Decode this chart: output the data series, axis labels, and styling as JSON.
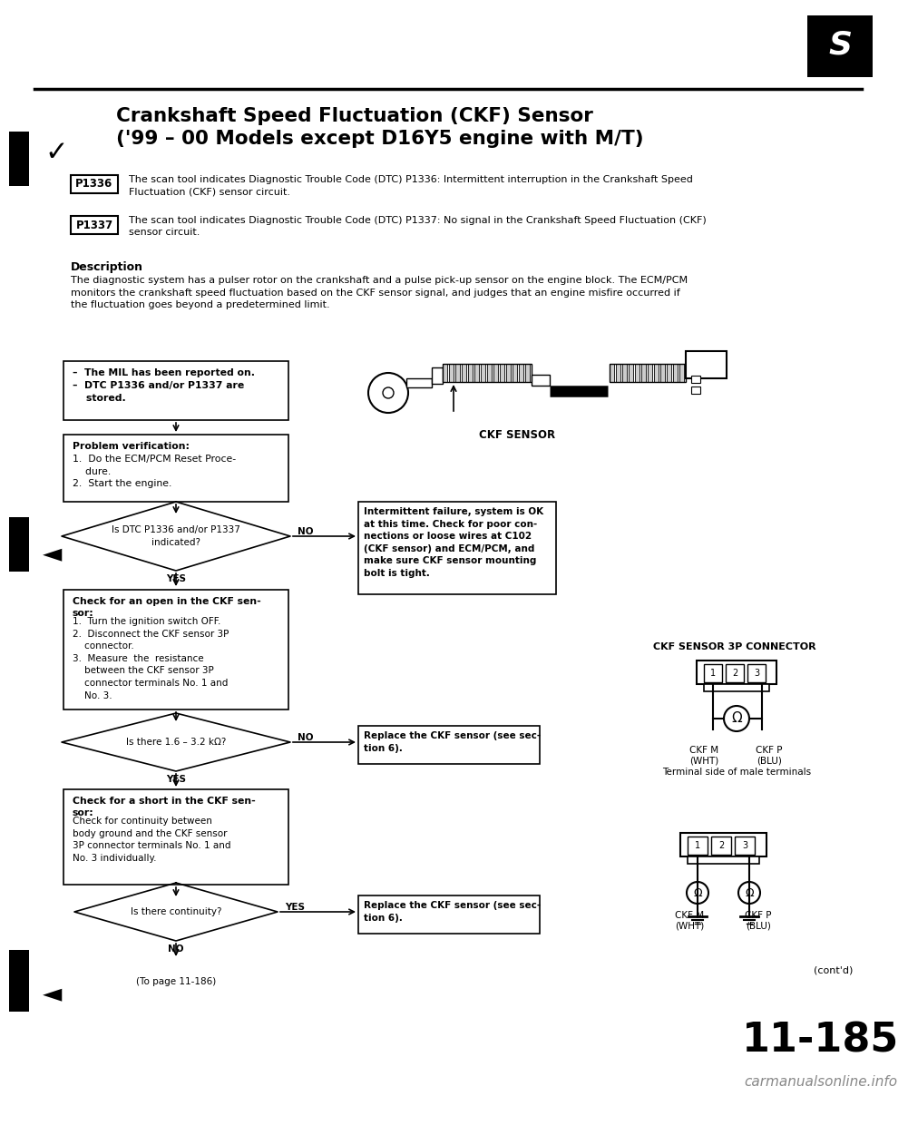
{
  "page_bg": "#ffffff",
  "title_line1": "Crankshaft Speed Fluctuation (CKF) Sensor",
  "title_line2": "('99 – 00 Models except D16Y5 engine with M/T)",
  "p1336_label": "P1336",
  "p1336_text": "The scan tool indicates Diagnostic Trouble Code (DTC) P1336: Intermittent interruption in the Crankshaft Speed\nFluctuation (CKF) sensor circuit.",
  "p1337_label": "P1337",
  "p1337_text": "The scan tool indicates Diagnostic Trouble Code (DTC) P1337: No signal in the Crankshaft Speed Fluctuation (CKF)\nsensor circuit.",
  "desc_title": "Description",
  "desc_text": "The diagnostic system has a pulser rotor on the crankshaft and a pulse pick-up sensor on the engine block. The ECM/PCM\nmonitors the crankshaft speed fluctuation based on the CKF sensor signal, and judges that an engine misfire occurred if\nthe fluctuation goes beyond a predetermined limit.",
  "box1_text": "–  The MIL has been reported on.\n–  DTC P1336 and/or P1337 are\n    stored.",
  "box2_title": "Problem verification:",
  "box2_text": "1.  Do the ECM/PCM Reset Proce-\n    dure.\n2.  Start the engine.",
  "diamond1_text": "Is DTC P1336 and/or P1337\nindicated?",
  "diamond1_no": "NO",
  "diamond1_yes": "YES",
  "intermittent_text": "Intermittent failure, system is OK\nat this time. Check for poor con-\nnections or loose wires at C102\n(CKF sensor) and ECM/PCM, and\nmake sure CKF sensor mounting\nbolt is tight.",
  "box3_title": "Check for an open in the CKF sen-\nsor:",
  "box3_text": "1.  Turn the ignition switch OFF.\n2.  Disconnect the CKF sensor 3P\n    connector.\n3.  Measure  the  resistance\n    between the CKF sensor 3P\n    connector terminals No. 1 and\n    No. 3.",
  "diamond2_text": "Is there 1.6 – 3.2 kΩ?",
  "diamond2_no": "NO",
  "diamond2_yes": "YES",
  "replace1_text": "Replace the CKF sensor (see sec-\ntion 6).",
  "box4_title": "Check for a short in the CKF sen-\nsor:",
  "box4_text": "Check for continuity between\nbody ground and the CKF sensor\n3P connector terminals No. 1 and\nNo. 3 individually.",
  "diamond3_text": "Is there continuity?",
  "diamond3_yes": "YES",
  "diamond3_no": "NO",
  "replace2_text": "Replace the CKF sensor (see sec-\ntion 6).",
  "ckf_sensor_label": "CKF SENSOR",
  "connector_title": "CKF SENSOR 3P CONNECTOR",
  "terminal_note": "Terminal side of male terminals",
  "contd": "(cont'd)",
  "to_page": "(To page 11-186)",
  "page_num": "11-185",
  "watermark": "carmanualsonline.info",
  "ckfm_wht": "CKF M\n(WHT)",
  "ckfp_blu": "CKF P\n(BLU)"
}
